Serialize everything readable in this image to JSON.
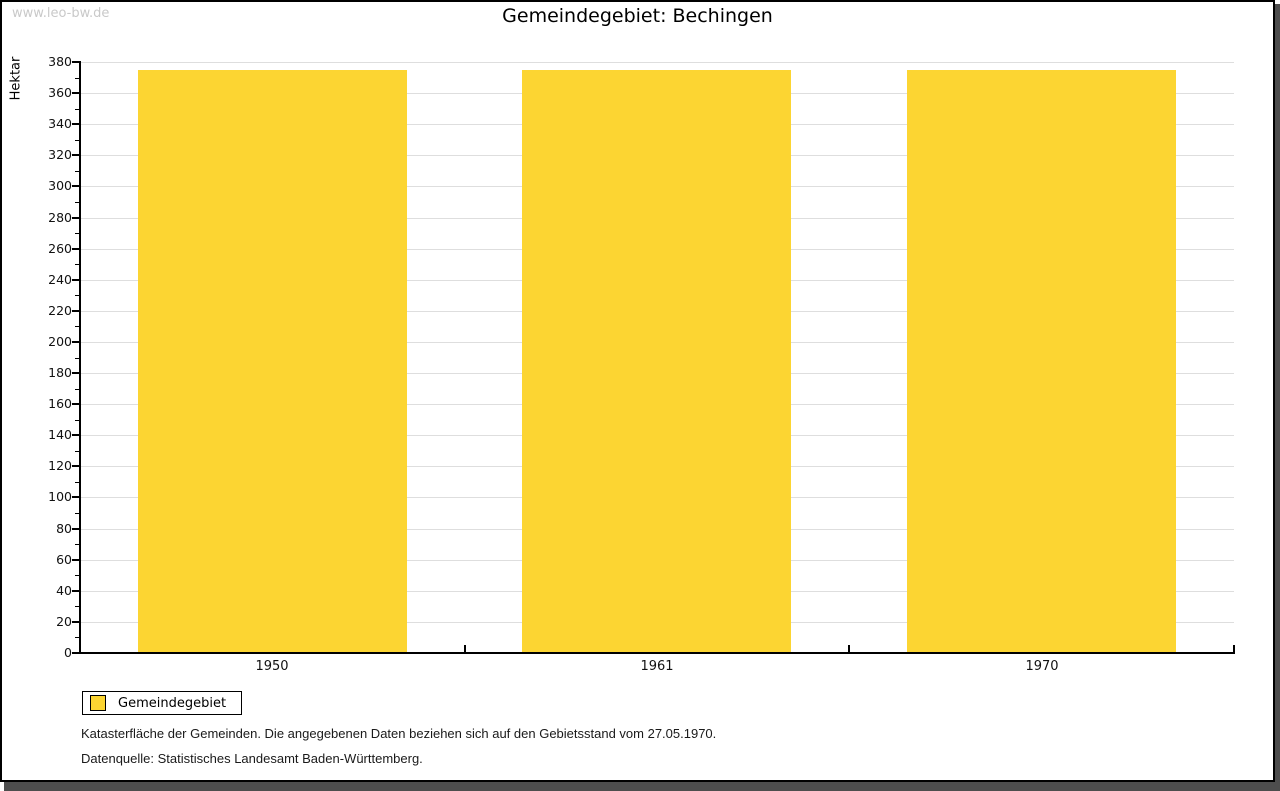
{
  "watermark": "www.leo-bw.de",
  "title": "Gemeindegebiet: Bechingen",
  "chart_data": {
    "type": "bar",
    "title": "Gemeindegebiet: Bechingen",
    "categories": [
      "1950",
      "1961",
      "1970"
    ],
    "series": [
      {
        "name": "Gemeindegebiet",
        "values": [
          375,
          375,
          375
        ]
      }
    ],
    "xlabel": "",
    "ylabel": "Hektar",
    "ylim": [
      0,
      380
    ],
    "ytick_major": 20,
    "ytick_minor": 10,
    "grid": "horizontal-major",
    "legend_position": "bottom-left",
    "bar_color": "#fcd532",
    "grid_color": "#dedede",
    "axis_color": "#000000"
  },
  "legend": {
    "items": [
      {
        "label": "Gemeindegebiet",
        "color": "#fcd532"
      }
    ]
  },
  "footnotes": [
    "Katasterfläche der Gemeinden. Die angegebenen Daten beziehen sich auf den Gebietsstand vom 27.05.1970.",
    "Datenquelle: Statistisches Landesamt Baden-Württemberg."
  ]
}
